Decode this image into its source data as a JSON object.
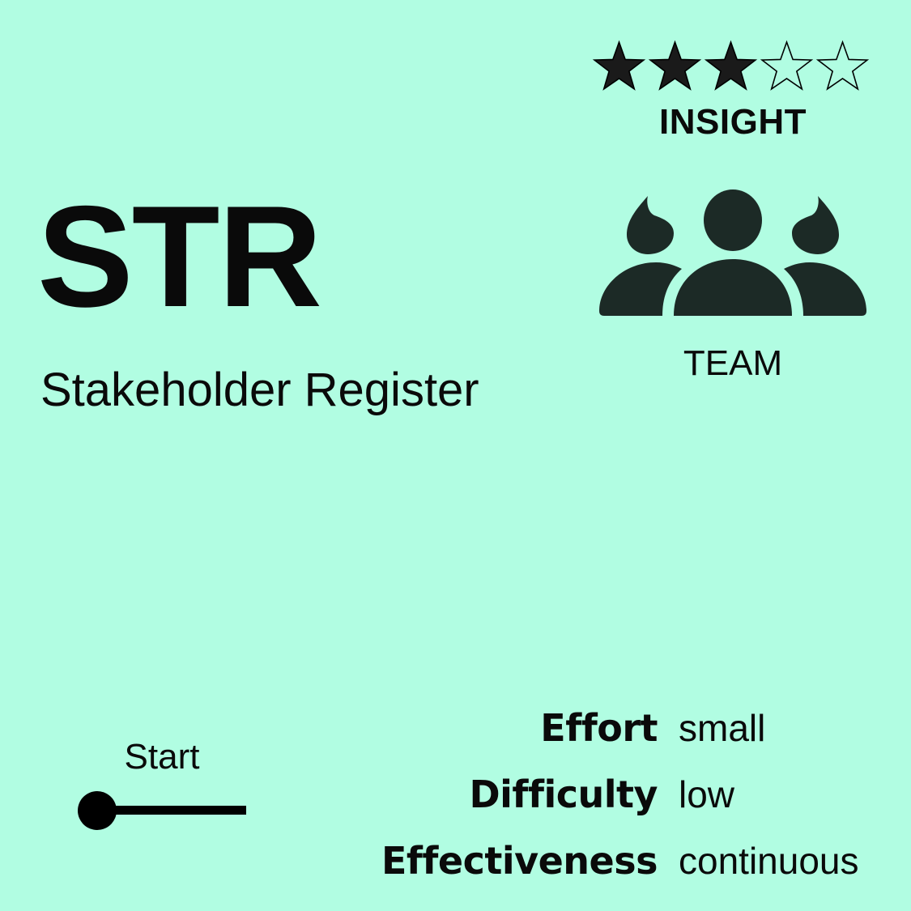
{
  "rating": {
    "score": 3,
    "max": 5
  },
  "category": "INSIGHT",
  "team": {
    "icon": "team-icon",
    "label": "TEAM"
  },
  "code": "STR",
  "name": "Stakeholder Register",
  "phase": {
    "label": "Start",
    "icon": "timeline-start-icon"
  },
  "metrics": [
    {
      "label": "Effort",
      "value": "small"
    },
    {
      "label": "Difficulty",
      "value": "low"
    },
    {
      "label": "Effectiveness",
      "value": "continuous"
    }
  ],
  "colors": {
    "background": "#b1fde2",
    "text": "#0a0a0a",
    "icon": "#1c2a26"
  }
}
